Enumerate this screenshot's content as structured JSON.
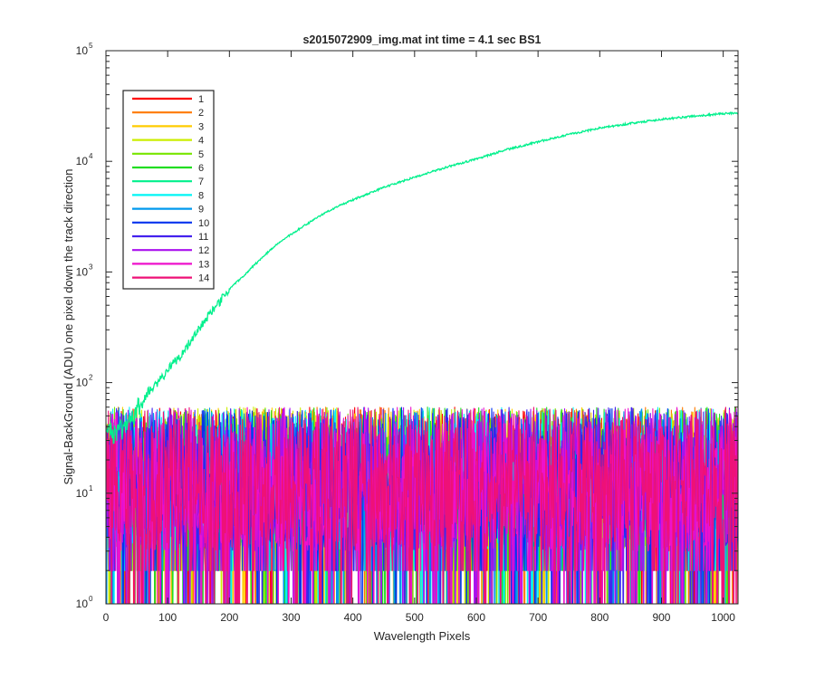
{
  "chart_data": {
    "type": "line",
    "title": "s2015072909_img.mat int time = 4.1 sec   BS1",
    "xlabel": "Wavelength Pixels",
    "ylabel": "Signal-BackGround (ADU) one pixel down the track direction",
    "xlim": [
      0,
      1024
    ],
    "ylim": [
      1,
      100000
    ],
    "yscale": "log",
    "grid": false,
    "legend_position": "top-left",
    "x_ticks": [
      "0",
      "100",
      "200",
      "300",
      "400",
      "500",
      "600",
      "700",
      "800",
      "900",
      "1000"
    ],
    "y_ticks": [
      {
        "base": "10",
        "exp": "0"
      },
      {
        "base": "10",
        "exp": "1"
      },
      {
        "base": "10",
        "exp": "2"
      },
      {
        "base": "10",
        "exp": "3"
      },
      {
        "base": "10",
        "exp": "4"
      },
      {
        "base": "10",
        "exp": "5"
      }
    ],
    "signal_series": {
      "name": "7",
      "x": [
        0,
        25,
        40,
        50,
        60,
        70,
        80,
        90,
        100,
        120,
        140,
        160,
        180,
        200,
        225,
        250,
        275,
        300,
        325,
        350,
        375,
        400,
        450,
        500,
        550,
        600,
        650,
        700,
        750,
        800,
        850,
        900,
        950,
        1000,
        1024
      ],
      "y": [
        35,
        38,
        45,
        58,
        70,
        85,
        95,
        110,
        130,
        175,
        250,
        360,
        500,
        700,
        950,
        1300,
        1750,
        2200,
        2700,
        3300,
        3900,
        4500,
        5800,
        7200,
        8800,
        10500,
        12800,
        15000,
        17500,
        20000,
        22000,
        24000,
        25500,
        27000,
        27500
      ]
    },
    "series": [
      {
        "name": "1",
        "color": "#ff0000"
      },
      {
        "name": "2",
        "color": "#ff7a00"
      },
      {
        "name": "3",
        "color": "#ffcc00"
      },
      {
        "name": "4",
        "color": "#ccee00"
      },
      {
        "name": "5",
        "color": "#77e600"
      },
      {
        "name": "6",
        "color": "#22dd22"
      },
      {
        "name": "7",
        "color": "#00f08c"
      },
      {
        "name": "8",
        "color": "#00f5f5"
      },
      {
        "name": "9",
        "color": "#0099ee"
      },
      {
        "name": "10",
        "color": "#0033ee"
      },
      {
        "name": "11",
        "color": "#4422ee"
      },
      {
        "name": "12",
        "color": "#aa11ee"
      },
      {
        "name": "13",
        "color": "#ee11cc"
      },
      {
        "name": "14",
        "color": "#ee1177"
      }
    ],
    "noise_floor_range_adu": [
      1,
      60
    ]
  }
}
